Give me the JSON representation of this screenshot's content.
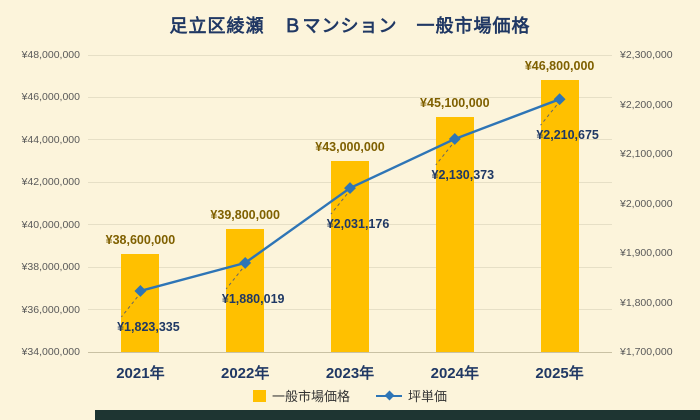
{
  "page": {
    "background": "#FCF4DB"
  },
  "chart": {
    "title": "足立区綾瀬　Ｂマンション　一般市場価格"
  },
  "legend": {
    "items": [
      {
        "label": "一般市場価格",
        "type": "bar",
        "color": "#FFC000"
      },
      {
        "label": "坪単価",
        "type": "line",
        "color": "#2E75B6"
      }
    ]
  },
  "chart_data": {
    "type": "bar",
    "combo": "bar+line",
    "title": "足立区綾瀬　Ｂマンション　一般市場価格",
    "categories": [
      "2021年",
      "2022年",
      "2023年",
      "2024年",
      "2025年"
    ],
    "series": [
      {
        "name": "一般市場価格",
        "type": "bar",
        "axis": "left",
        "color": "#FFC000",
        "label_color": "#7F6000",
        "values": [
          38600000,
          39800000,
          43000000,
          45100000,
          46800000
        ],
        "data_labels": [
          "¥38,600,000",
          "¥39,800,000",
          "¥43,000,000",
          "¥45,100,000",
          "¥46,800,000"
        ]
      },
      {
        "name": "坪単価",
        "type": "line",
        "axis": "right",
        "color": "#2E75B6",
        "label_color": "#1F3864",
        "values": [
          1823335,
          1880019,
          2031176,
          2130373,
          2210675
        ],
        "data_labels": [
          "¥1,823,335",
          "¥1,880,019",
          "¥2,031,176",
          "¥2,130,373",
          "¥2,210,675"
        ]
      }
    ],
    "left_axis": {
      "min": 34000000,
      "max": 48000000,
      "step": 2000000,
      "tick_labels_top_to_bottom": [
        "¥48,000,000",
        "¥46,000,000",
        "¥44,000,000",
        "¥42,000,000",
        "¥40,000,000",
        "¥38,000,000",
        "¥36,000,000",
        "¥34,000,000"
      ]
    },
    "right_axis": {
      "min": 1700000,
      "max": 2300000,
      "step": 100000,
      "tick_labels_top_to_bottom": [
        "¥2,300,000",
        "¥2,200,000",
        "¥2,100,000",
        "¥2,000,000",
        "¥1,900,000",
        "¥1,800,000",
        "¥1,700,000"
      ]
    },
    "grid": true,
    "legend_position": "bottom"
  }
}
